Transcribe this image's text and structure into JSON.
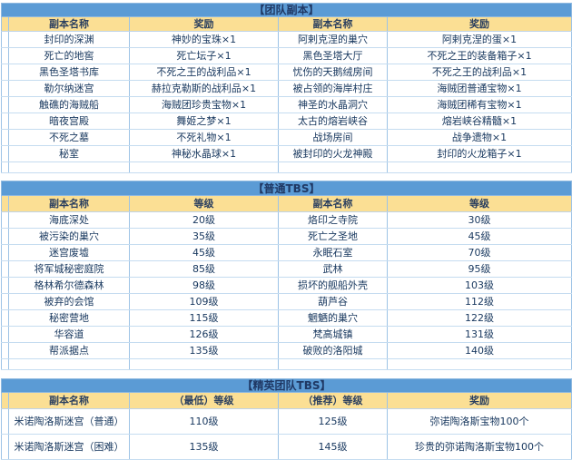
{
  "colors": {
    "title_bar_bg": "#5B9BD5",
    "title_text": "#1F3864",
    "header_bg": "#FBDF94",
    "body_text": "#17375E",
    "grid_border": "#9DC3E6"
  },
  "tables": [
    {
      "title": "【团队副本】",
      "headers": [
        "副本名称",
        "奖励",
        "副本名称",
        "奖励"
      ],
      "rows": [
        [
          "封印的深渊",
          "神妙的宝珠×1",
          "阿剌克涅的巢穴",
          "阿剌克涅的蛋×1"
        ],
        [
          "死亡的地窖",
          "死亡坛子×1",
          "黑色圣塔大厅",
          "不死之王的装备箱子×1"
        ],
        [
          "黑色圣塔书库",
          "不死之王的战利品×1",
          "忧伤的天鹅绒房间",
          "不死之王的战利品×1"
        ],
        [
          "勒尔纳迷宫",
          "赫拉克勒斯的战利品×1",
          "被占领的海岸村庄",
          "海贼团普通宝物×1"
        ],
        [
          "触礁的海贼船",
          "海贼团珍贵宝物×1",
          "神圣的水晶洞穴",
          "海贼团稀有宝物×1"
        ],
        [
          "暗夜宫殿",
          "舞姬之梦×1",
          "太古的熔岩峡谷",
          "熔岩峡谷精髓×1"
        ],
        [
          "不死之墓",
          "不死礼物×1",
          "战场房间",
          "战争遗物×1"
        ],
        [
          "秘室",
          "神秘水晶球×1",
          "被封印的火龙神殿",
          "封印的火龙箱子×1"
        ]
      ]
    },
    {
      "title": "【普通TBS】",
      "headers": [
        "副本名称",
        "等级",
        "副本名称",
        "等级"
      ],
      "rows": [
        [
          "海底深处",
          "20级",
          "烙印之寺院",
          "30级"
        ],
        [
          "被污染的巢穴",
          "35级",
          "死亡之圣地",
          "45级"
        ],
        [
          "迷宫废墟",
          "45级",
          "永眠石室",
          "70级"
        ],
        [
          "将军城秘密庭院",
          "85级",
          "武林",
          "95级"
        ],
        [
          "格林希尔德森林",
          "98级",
          "损坏的舰船外壳",
          "103级"
        ],
        [
          "被弃的会馆",
          "109级",
          "葫芦谷",
          "112级"
        ],
        [
          "秘密营地",
          "115级",
          "魍魉的巢穴",
          "122级"
        ],
        [
          "华容道",
          "126级",
          "梵高城镇",
          "131级"
        ],
        [
          "帮派据点",
          "135级",
          "破败的洛阳城",
          "140级"
        ]
      ]
    },
    {
      "title": "【精英团队TBS】",
      "headers": [
        "副本名称",
        "（最低）等级",
        "（推荐）等级",
        "奖励"
      ],
      "rows": [
        [
          "米诺陶洛斯迷宫（普通）",
          "110级",
          "125级",
          "弥诺陶洛斯宝物100个"
        ],
        [
          "米诺陶洛斯迷宫（困难）",
          "135级",
          "145级",
          "珍贵的弥诺陶洛斯宝物100个"
        ]
      ]
    }
  ]
}
